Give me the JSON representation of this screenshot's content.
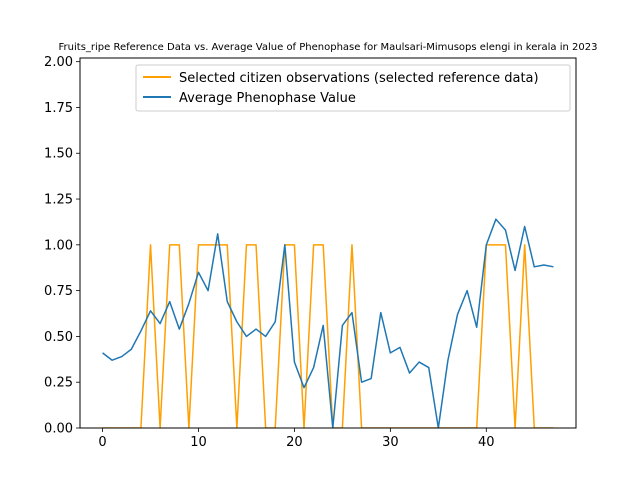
{
  "chart_data": {
    "type": "line",
    "title": "Fruits_ripe Reference Data vs. Average Value of Phenophase for Maulsari-Mimusops elengi in kerala in 2023",
    "xlabel": "",
    "ylabel": "",
    "xlim": [
      -2.35,
      49.35
    ],
    "ylim": [
      0,
      2.02
    ],
    "xticks": [
      0,
      10,
      20,
      30,
      40
    ],
    "yticks": [
      0.0,
      0.25,
      0.5,
      0.75,
      1.0,
      1.25,
      1.5,
      1.75,
      2.0
    ],
    "ytick_labels": [
      "0.00",
      "0.25",
      "0.50",
      "0.75",
      "1.00",
      "1.25",
      "1.50",
      "1.75",
      "2.00"
    ],
    "grid": false,
    "legend_position": "upper right",
    "series": [
      {
        "name": "Selected citizen observations (selected reference data)",
        "color": "#ff9f00",
        "x": [
          0,
          1,
          2,
          3,
          4,
          5,
          6,
          7,
          8,
          9,
          10,
          11,
          12,
          13,
          14,
          15,
          16,
          17,
          18,
          19,
          20,
          21,
          22,
          23,
          24,
          25,
          26,
          27,
          28,
          29,
          30,
          31,
          32,
          33,
          34,
          35,
          36,
          37,
          38,
          39,
          40,
          41,
          42,
          43,
          44,
          45,
          46,
          47
        ],
        "y": [
          0,
          0,
          0,
          0,
          0,
          1,
          0,
          1,
          1,
          0,
          1,
          1,
          1,
          1,
          0,
          1,
          1,
          0,
          0,
          1,
          1,
          0,
          1,
          1,
          0,
          0,
          1,
          0,
          0,
          0,
          0,
          0,
          0,
          0,
          0,
          0,
          0,
          0,
          0,
          0,
          1,
          1,
          1,
          0,
          1,
          0,
          0,
          0
        ]
      },
      {
        "name": "Average Phenophase Value",
        "color": "#1f77b4",
        "x": [
          0,
          1,
          2,
          3,
          4,
          5,
          6,
          7,
          8,
          9,
          10,
          11,
          12,
          13,
          14,
          15,
          16,
          17,
          18,
          19,
          20,
          21,
          22,
          23,
          24,
          25,
          26,
          27,
          28,
          29,
          30,
          31,
          32,
          33,
          34,
          35,
          36,
          37,
          38,
          39,
          40,
          41,
          42,
          43,
          44,
          45,
          46,
          47
        ],
        "y": [
          0.41,
          0.37,
          0.39,
          0.43,
          0.53,
          0.64,
          0.57,
          0.69,
          0.54,
          0.68,
          0.85,
          0.75,
          1.06,
          0.69,
          0.58,
          0.5,
          0.54,
          0.5,
          0.58,
          1.0,
          0.36,
          0.22,
          0.33,
          0.56,
          0.0,
          0.56,
          0.63,
          0.25,
          0.27,
          0.63,
          0.41,
          0.44,
          0.3,
          0.36,
          0.33,
          0.0,
          0.37,
          0.62,
          0.75,
          0.55,
          1.0,
          1.14,
          1.08,
          0.86,
          1.1,
          0.88,
          0.89,
          0.88
        ]
      }
    ]
  }
}
